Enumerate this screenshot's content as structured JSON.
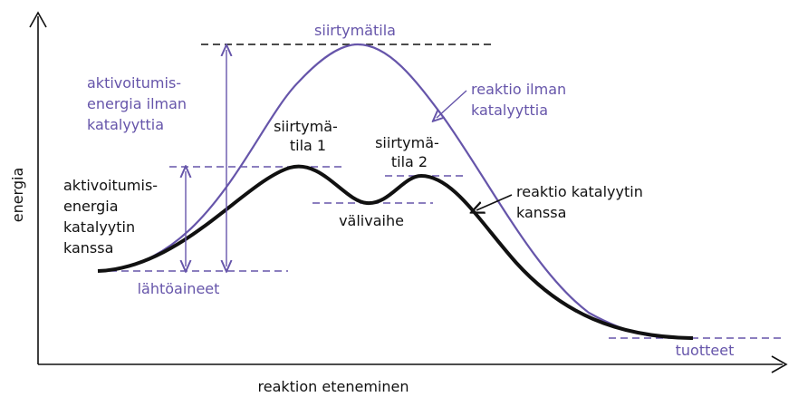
{
  "axes": {
    "y_label": "energia",
    "x_label": "reaktion eteneminen"
  },
  "labels": {
    "transition_state": "siirtymätila",
    "ts1": [
      "siirtymä-",
      "tila 1"
    ],
    "ts2": [
      "siirtymä-",
      "tila 2"
    ],
    "intermediate": "välivaihe",
    "reactants": "lähtöaineet",
    "products": "tuotteet",
    "activation_uncatalyzed": [
      "aktivoitumis-",
      "energia ilman",
      "katalyyttia"
    ],
    "activation_catalyzed": [
      "aktivoitumis-",
      "energia",
      "katalyytin",
      "kanssa"
    ],
    "uncatalyzed_reaction": [
      "reaktio ilman",
      "katalyyttia"
    ],
    "catalyzed_reaction": [
      "reaktio katalyytin",
      "kanssa"
    ]
  },
  "colors": {
    "uncatalyzed": "#6655aa",
    "catalyzed": "#111111",
    "dashed_purple": "#6655aa",
    "dashed_black": "#111111"
  }
}
